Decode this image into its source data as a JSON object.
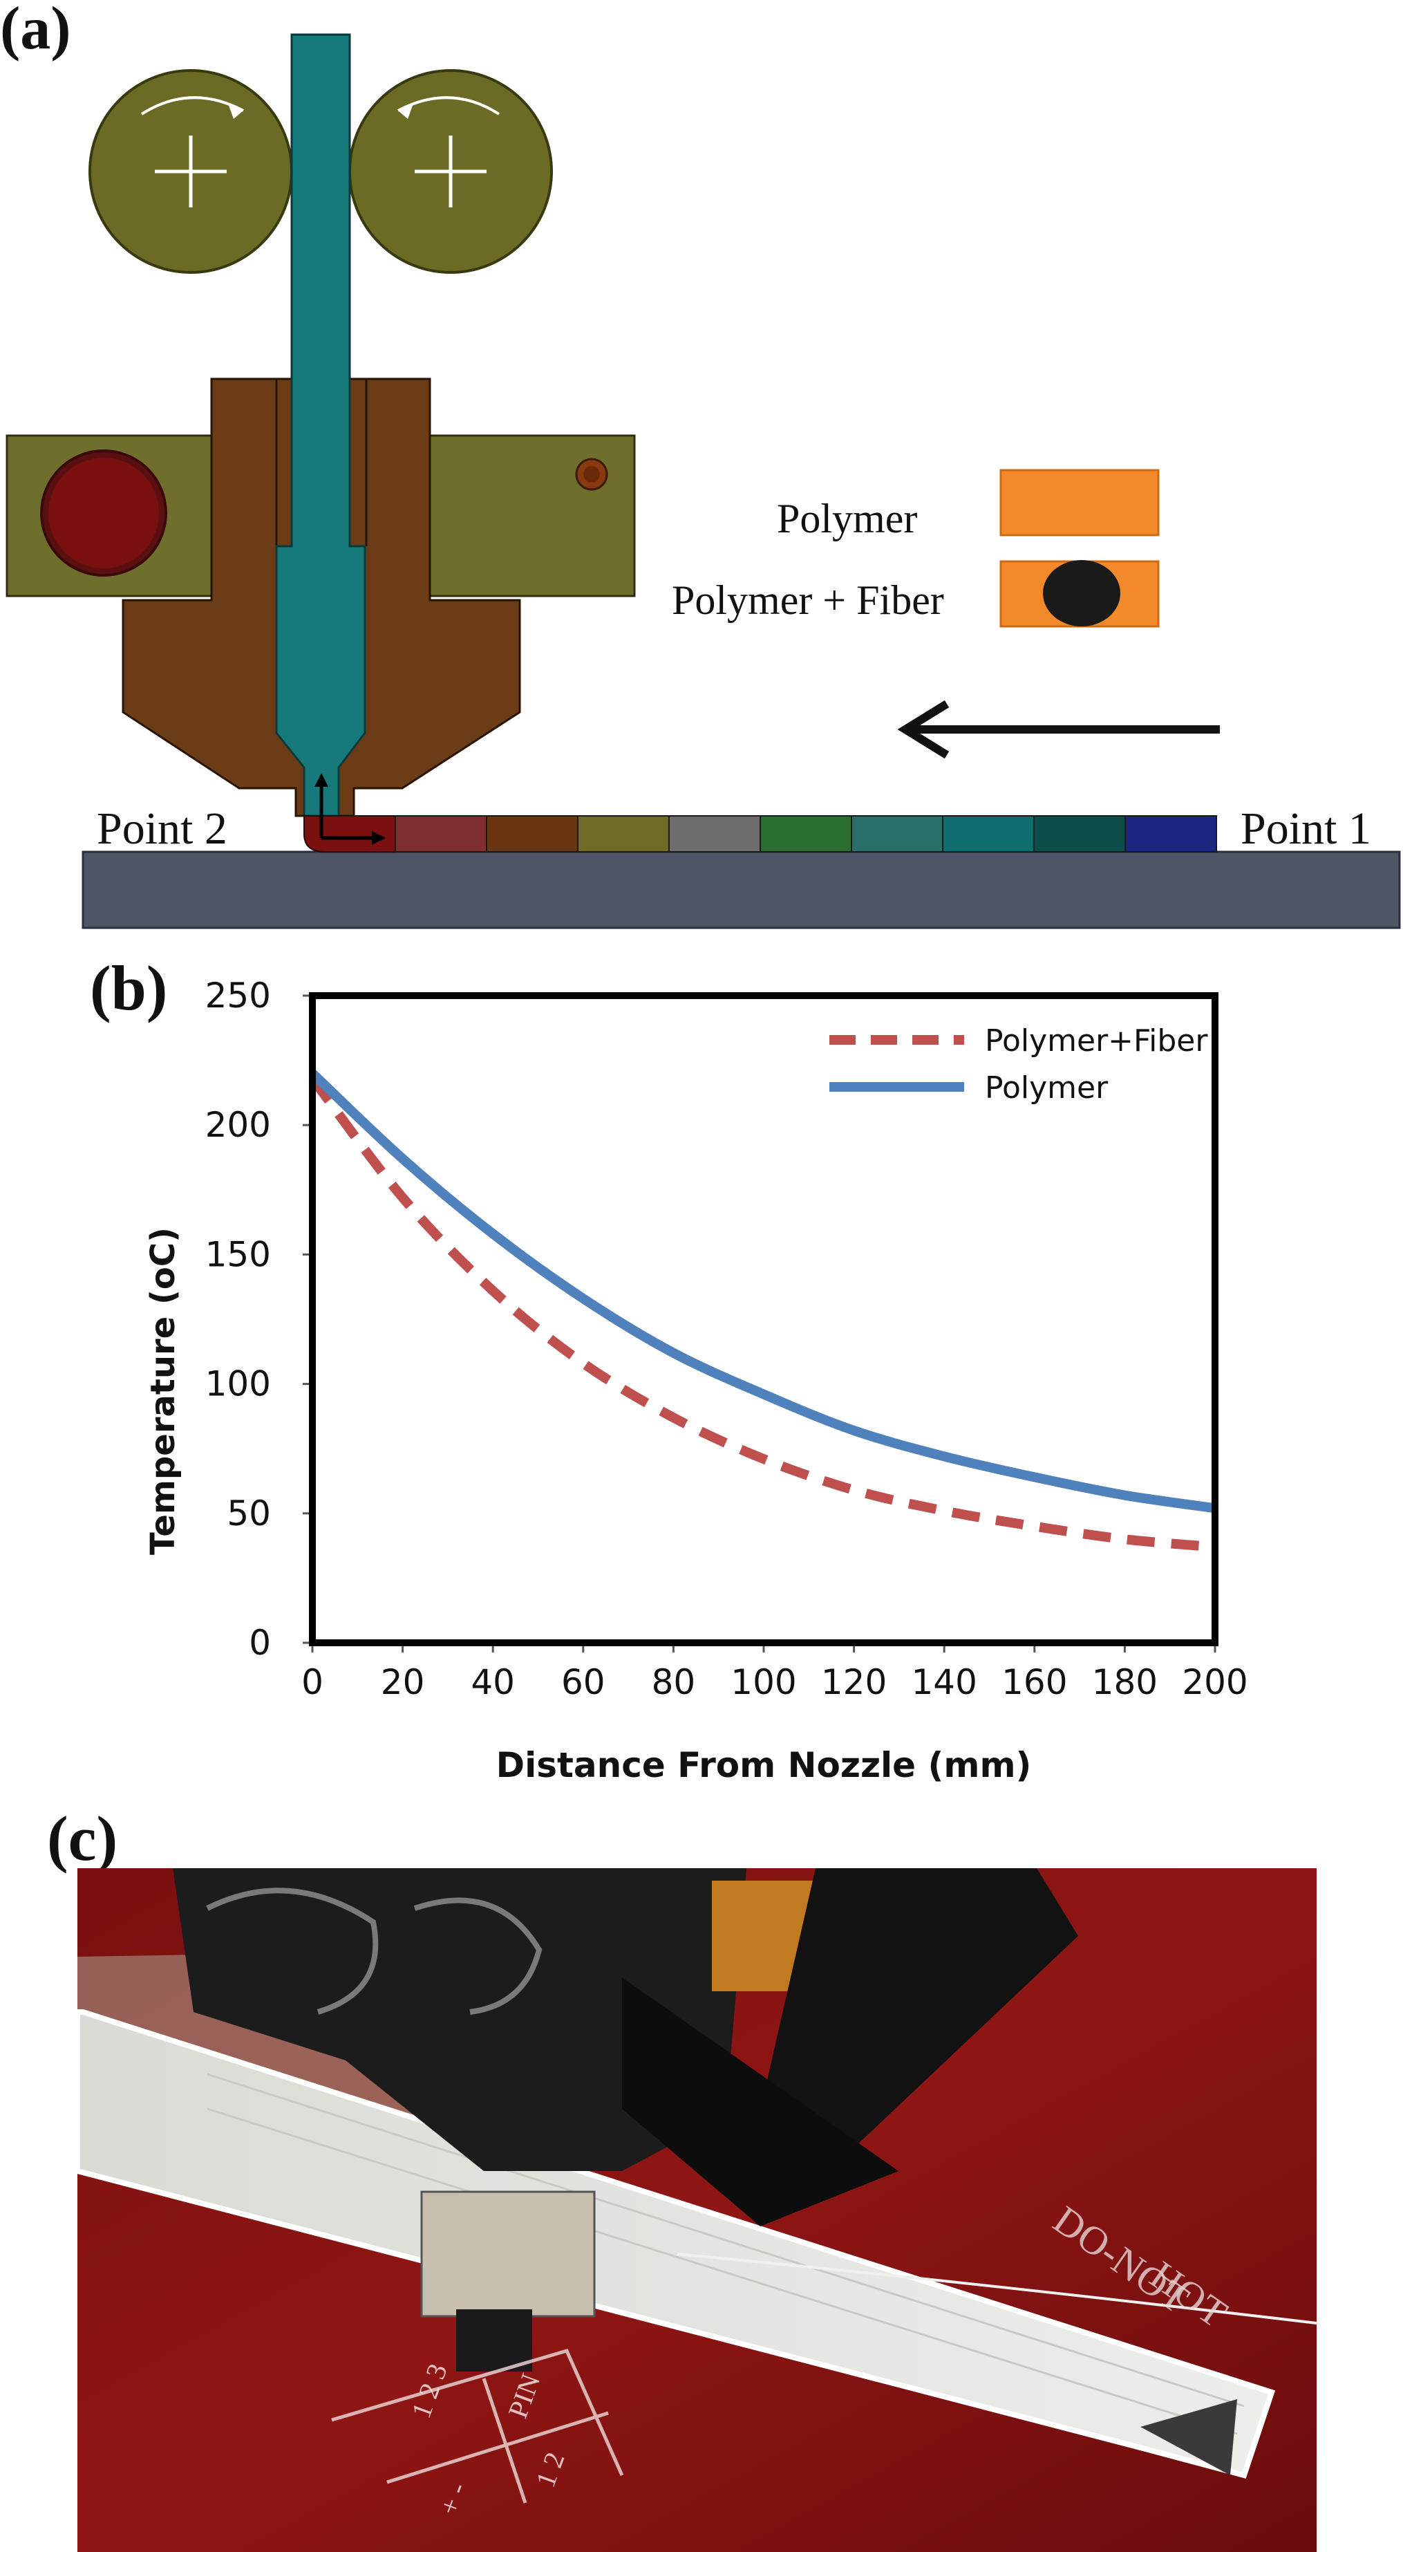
{
  "panels": {
    "a": {
      "label": "(a)",
      "legend": {
        "polymer": "Polymer",
        "polymer_fiber": "Polymer + Fiber"
      },
      "point2": "Point 2",
      "point1": "Point 1",
      "colors": {
        "rollers": "#6b6b26",
        "filament": "#177a7a",
        "heater_block": "#6e6e2d",
        "nozzle_body": "#6b3c16",
        "heater_cartridge": "#6e0f0f",
        "bed": "#4f5566",
        "polymer_swatch": "#f28a2c",
        "fiber_dot": "#1a1a1a",
        "temperature_bands": [
          "#7a1010",
          "#7d2f2f",
          "#6a3611",
          "#6f6b27",
          "#6e6e6e",
          "#2a6e30",
          "#2a6e6a",
          "#0e6e6e",
          "#0e4e4a",
          "#1a2680"
        ]
      }
    },
    "b": {
      "label": "(b)"
    },
    "c": {
      "label": "(c)",
      "bed_markings": [
        "HOT",
        "DO-NOT",
        "PIN",
        "1 2",
        "1 2 3",
        "+ -"
      ]
    }
  },
  "chart_data": {
    "type": "line",
    "title": "",
    "xlabel": "Distance From Nozzle (mm)",
    "ylabel": "Temperature (oC)",
    "xlim": [
      0,
      200
    ],
    "ylim": [
      0,
      250
    ],
    "xticks": [
      "0",
      "20",
      "40",
      "60",
      "80",
      "100",
      "120",
      "140",
      "160",
      "180",
      "200"
    ],
    "yticks": [
      "0",
      "50",
      "100",
      "150",
      "200",
      "250"
    ],
    "x": [
      0,
      20,
      40,
      60,
      80,
      100,
      120,
      140,
      160,
      180,
      200
    ],
    "series": [
      {
        "name": "Polymer+Fiber",
        "style": "dashed",
        "color": "#c0504d",
        "values": [
          218,
          172,
          136,
          108,
          87,
          71,
          59,
          51,
          45,
          40,
          37
        ]
      },
      {
        "name": "Polymer",
        "style": "solid",
        "color": "#4f81bd",
        "values": [
          220,
          187,
          158,
          133,
          112,
          96,
          82,
          72,
          64,
          57,
          52
        ]
      }
    ],
    "legend_position": "top-right"
  }
}
